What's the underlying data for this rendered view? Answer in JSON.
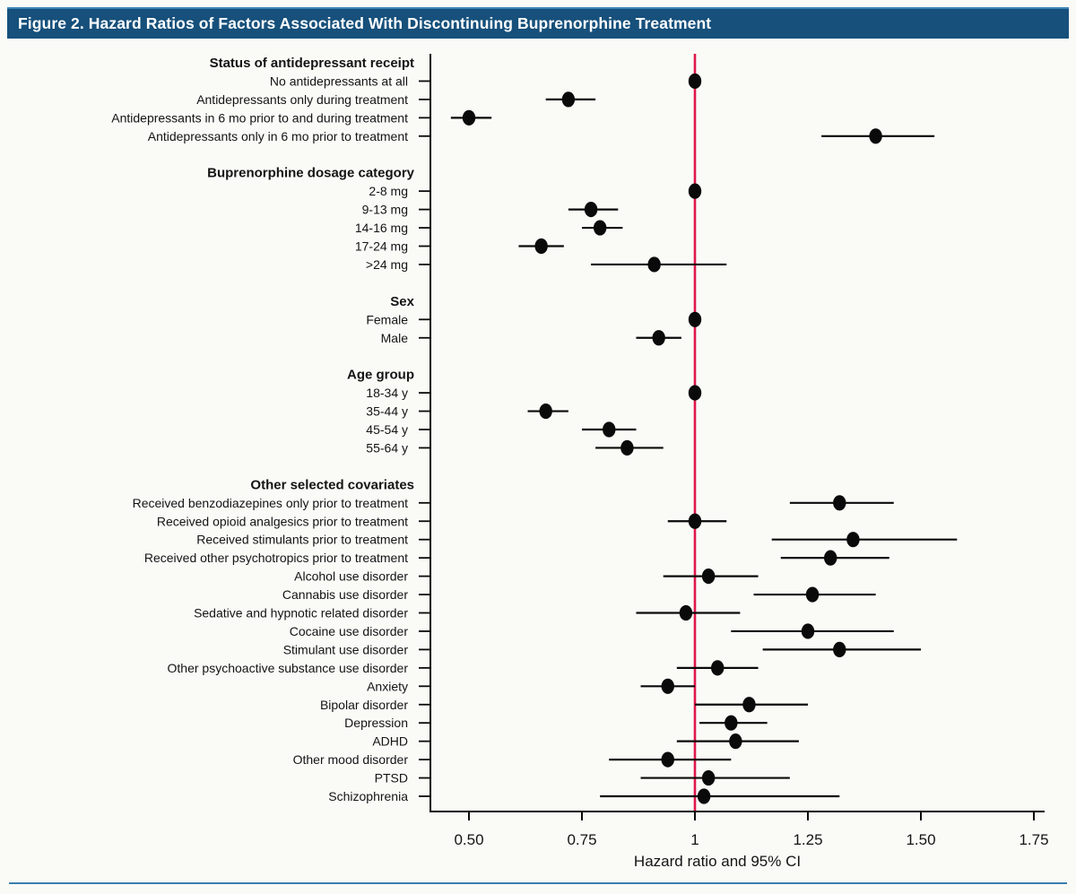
{
  "figure": {
    "title": "Figure 2. Hazard Ratios of Factors Associated With Discontinuing Buprenorphine Treatment",
    "title_bg": "#16507b",
    "title_top_border": "#3d85b5",
    "page_bg": "#fafaf7",
    "bottom_rule_color": "#3a7fae"
  },
  "chart_data": {
    "type": "forest",
    "title": "Figure 2. Hazard Ratios of Factors Associated With Discontinuing Buprenorphine Treatment",
    "xlabel": "Hazard ratio and 95% CI",
    "xlim": [
      0.41,
      1.78
    ],
    "x_ticks": [
      0.5,
      0.75,
      1.0,
      1.25,
      1.5,
      1.75
    ],
    "x_tick_labels": [
      "0.50",
      "0.75",
      "1",
      "1.25",
      "1.50",
      "1.75"
    ],
    "reference_line": 1.0,
    "grid": false,
    "colors": {
      "reference_line": "#e0164a",
      "marker": "#0a0a0a",
      "ci_line": "#0a0a0a",
      "axis": "#0a0a0a"
    },
    "sections": [
      {
        "header": "Status of antidepressant receipt",
        "rows": [
          {
            "label": "No antidepressants at all",
            "hr": 1.0,
            "lo": null,
            "hi": null
          },
          {
            "label": "Antidepressants only during treatment",
            "hr": 0.72,
            "lo": 0.67,
            "hi": 0.78
          },
          {
            "label": "Antidepressants in 6 mo prior to and during treatment",
            "hr": 0.5,
            "lo": 0.46,
            "hi": 0.55
          },
          {
            "label": "Antidepressants only in 6 mo prior to treatment",
            "hr": 1.4,
            "lo": 1.28,
            "hi": 1.53
          }
        ]
      },
      {
        "header": "Buprenorphine dosage category",
        "rows": [
          {
            "label": "2-8 mg",
            "hr": 1.0,
            "lo": null,
            "hi": null
          },
          {
            "label": "9-13 mg",
            "hr": 0.77,
            "lo": 0.72,
            "hi": 0.83
          },
          {
            "label": "14-16 mg",
            "hr": 0.79,
            "lo": 0.75,
            "hi": 0.84
          },
          {
            "label": "17-24 mg",
            "hr": 0.66,
            "lo": 0.61,
            "hi": 0.71
          },
          {
            "label": ">24 mg",
            "hr": 0.91,
            "lo": 0.77,
            "hi": 1.07
          }
        ]
      },
      {
        "header": "Sex",
        "rows": [
          {
            "label": "Female",
            "hr": 1.0,
            "lo": null,
            "hi": null
          },
          {
            "label": "Male",
            "hr": 0.92,
            "lo": 0.87,
            "hi": 0.97
          }
        ]
      },
      {
        "header": "Age group",
        "rows": [
          {
            "label": "18-34 y",
            "hr": 1.0,
            "lo": null,
            "hi": null
          },
          {
            "label": "35-44 y",
            "hr": 0.67,
            "lo": 0.63,
            "hi": 0.72
          },
          {
            "label": "45-54 y",
            "hr": 0.81,
            "lo": 0.75,
            "hi": 0.87
          },
          {
            "label": "55-64 y",
            "hr": 0.85,
            "lo": 0.78,
            "hi": 0.93
          }
        ]
      },
      {
        "header": "Other selected covariates",
        "rows": [
          {
            "label": "Received benzodiazepines only prior to treatment",
            "hr": 1.32,
            "lo": 1.21,
            "hi": 1.44
          },
          {
            "label": "Received opioid analgesics prior to treatment",
            "hr": 1.0,
            "lo": 0.94,
            "hi": 1.07
          },
          {
            "label": "Received stimulants prior to treatment",
            "hr": 1.35,
            "lo": 1.17,
            "hi": 1.58
          },
          {
            "label": "Received other psychotropics prior to treatment",
            "hr": 1.3,
            "lo": 1.19,
            "hi": 1.43
          },
          {
            "label": "Alcohol use disorder",
            "hr": 1.03,
            "lo": 0.93,
            "hi": 1.14
          },
          {
            "label": "Cannabis use disorder",
            "hr": 1.26,
            "lo": 1.13,
            "hi": 1.4
          },
          {
            "label": "Sedative and hypnotic related disorder",
            "hr": 0.98,
            "lo": 0.87,
            "hi": 1.1
          },
          {
            "label": "Cocaine use disorder",
            "hr": 1.25,
            "lo": 1.08,
            "hi": 1.44
          },
          {
            "label": "Stimulant use disorder",
            "hr": 1.32,
            "lo": 1.15,
            "hi": 1.5
          },
          {
            "label": "Other psychoactive substance use disorder",
            "hr": 1.05,
            "lo": 0.96,
            "hi": 1.14
          },
          {
            "label": "Anxiety",
            "hr": 0.94,
            "lo": 0.88,
            "hi": 1.0
          },
          {
            "label": "Bipolar disorder",
            "hr": 1.12,
            "lo": 1.0,
            "hi": 1.25
          },
          {
            "label": "Depression",
            "hr": 1.08,
            "lo": 1.01,
            "hi": 1.16
          },
          {
            "label": "ADHD",
            "hr": 1.09,
            "lo": 0.96,
            "hi": 1.23
          },
          {
            "label": "Other mood disorder",
            "hr": 0.94,
            "lo": 0.81,
            "hi": 1.08
          },
          {
            "label": "PTSD",
            "hr": 1.03,
            "lo": 0.88,
            "hi": 1.21
          },
          {
            "label": "Schizophrenia",
            "hr": 1.02,
            "lo": 0.79,
            "hi": 1.32
          }
        ]
      }
    ]
  }
}
